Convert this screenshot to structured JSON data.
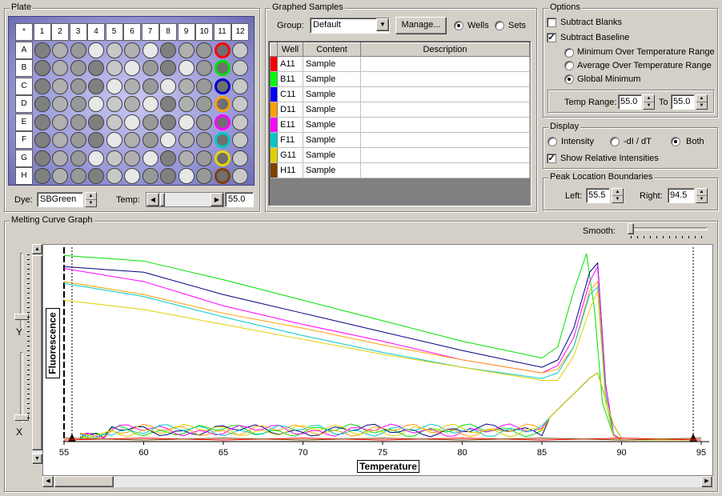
{
  "plate": {
    "title": "Plate",
    "corner": "*",
    "cols": [
      "1",
      "2",
      "3",
      "4",
      "5",
      "6",
      "7",
      "8",
      "9",
      "10",
      "11",
      "12"
    ],
    "rows": [
      "A",
      "B",
      "C",
      "D",
      "E",
      "F",
      "G",
      "H"
    ],
    "dye_label": "Dye:",
    "dye_value": "SBGreen",
    "temp_label": "Temp:",
    "temp_value": "55.0",
    "selected_colors": [
      "#ff0000",
      "#00e000",
      "#0000c8",
      "#ffa000",
      "#ff00ff",
      "#00c8c8",
      "#e8d800",
      "#804000"
    ]
  },
  "graphed": {
    "title": "Graphed Samples",
    "group_label": "Group:",
    "group_value": "Default",
    "manage_label": "Manage...",
    "wells_label": "Wells",
    "sets_label": "Sets",
    "columns": [
      "Well",
      "Content",
      "Description"
    ],
    "rows": [
      {
        "well": "A11",
        "content": "Sample",
        "description": "",
        "color": "#ff0000"
      },
      {
        "well": "B11",
        "content": "Sample",
        "description": "",
        "color": "#00ff00"
      },
      {
        "well": "C11",
        "content": "Sample",
        "description": "",
        "color": "#0000ff"
      },
      {
        "well": "D11",
        "content": "Sample",
        "description": "",
        "color": "#ffa000"
      },
      {
        "well": "E11",
        "content": "Sample",
        "description": "",
        "color": "#ff00ff"
      },
      {
        "well": "F11",
        "content": "Sample",
        "description": "",
        "color": "#00c8c8"
      },
      {
        "well": "G11",
        "content": "Sample",
        "description": "",
        "color": "#e0d000"
      },
      {
        "well": "H11",
        "content": "Sample",
        "description": "",
        "color": "#804000"
      }
    ]
  },
  "options": {
    "title": "Options",
    "subtract_blanks": "Subtract Blanks",
    "subtract_baseline": "Subtract Baseline",
    "min_range": "Minimum Over Temperature Range",
    "avg_range": "Average Over Temperature Range",
    "global_min": "Global Minimum",
    "temp_range_label": "Temp Range:",
    "temp_from": "55.0",
    "to_label": "To",
    "temp_to": "55.0"
  },
  "display": {
    "title": "Display",
    "intensity": "Intensity",
    "dIdT": "-dI / dT",
    "both": "Both",
    "show_relative": "Show Relative Intensities"
  },
  "peak": {
    "title": "Peak Location Boundaries",
    "left_label": "Left:",
    "left_value": "55.5",
    "right_label": "Right:",
    "right_value": "94.5"
  },
  "graph": {
    "title": "Melting Curve Graph",
    "smooth_label": "Smooth:",
    "y_label": "Y",
    "x_label": "X",
    "ylabel": "Fluorescence",
    "xlabel": "Temperature",
    "xticks": [
      "55",
      "60",
      "65",
      "70",
      "75",
      "80",
      "85",
      "90",
      "95"
    ]
  },
  "chart_data": {
    "type": "line",
    "xlabel": "Temperature",
    "ylabel": "Fluorescence",
    "xlim": [
      55,
      95
    ],
    "ylim": [
      0,
      1
    ],
    "series": [
      {
        "color": "#00e000",
        "x": [
          55,
          60,
          65,
          70,
          75,
          80,
          85,
          86,
          87,
          87.8,
          88.3,
          88.8,
          89.5,
          90,
          95
        ],
        "y": [
          0.99,
          0.96,
          0.86,
          0.75,
          0.64,
          0.53,
          0.44,
          0.5,
          0.8,
          1.0,
          0.7,
          0.2,
          0.02,
          0,
          0
        ]
      },
      {
        "color": "#000080",
        "x": [
          55,
          60,
          65,
          70,
          75,
          80,
          85,
          86,
          87,
          88,
          88.5,
          89,
          89.5,
          90,
          95
        ],
        "y": [
          0.93,
          0.9,
          0.78,
          0.68,
          0.58,
          0.48,
          0.39,
          0.43,
          0.6,
          0.9,
          0.95,
          0.3,
          0.03,
          0,
          0
        ]
      },
      {
        "color": "#ff00ff",
        "x": [
          55,
          60,
          65,
          70,
          75,
          80,
          85,
          86,
          87,
          88,
          88.5,
          89,
          89.5,
          90,
          95
        ],
        "y": [
          0.92,
          0.85,
          0.72,
          0.62,
          0.53,
          0.43,
          0.36,
          0.4,
          0.55,
          0.85,
          0.93,
          0.3,
          0.03,
          0,
          0
        ]
      },
      {
        "color": "#ffa000",
        "x": [
          55,
          60,
          65,
          70,
          75,
          80,
          85,
          86,
          87,
          88,
          88.5,
          89,
          89.5,
          90,
          95
        ],
        "y": [
          0.85,
          0.78,
          0.68,
          0.6,
          0.51,
          0.43,
          0.36,
          0.38,
          0.5,
          0.8,
          0.85,
          0.25,
          0.02,
          0,
          0
        ]
      },
      {
        "color": "#00c8c8",
        "x": [
          55,
          60,
          65,
          70,
          75,
          80,
          85,
          86,
          87,
          88,
          88.5,
          89,
          89.5,
          90,
          95
        ],
        "y": [
          0.84,
          0.77,
          0.66,
          0.56,
          0.47,
          0.39,
          0.33,
          0.36,
          0.5,
          0.78,
          0.82,
          0.25,
          0.02,
          0,
          0
        ]
      },
      {
        "color": "#e0d000",
        "x": [
          55,
          60,
          65,
          70,
          75,
          80,
          85,
          86,
          87,
          88,
          88.5,
          89,
          89.5,
          90,
          95
        ],
        "y": [
          0.75,
          0.7,
          0.62,
          0.54,
          0.46,
          0.39,
          0.32,
          0.32,
          0.45,
          0.7,
          0.8,
          0.2,
          0.02,
          0,
          0
        ]
      },
      {
        "color": "#ff0000",
        "x": [
          55,
          60,
          65,
          70,
          75,
          80,
          85,
          90,
          95
        ],
        "y": [
          0.0,
          0.01,
          0.0,
          0.01,
          0.0,
          0.01,
          0.0,
          0.01,
          0.0
        ]
      },
      {
        "color": "#804000",
        "x": [
          55,
          60,
          65,
          70,
          75,
          80,
          85,
          90,
          95
        ],
        "y": [
          0.01,
          0.0,
          0.01,
          0.0,
          0.01,
          0.0,
          0.01,
          0.0,
          0.01
        ]
      }
    ]
  }
}
